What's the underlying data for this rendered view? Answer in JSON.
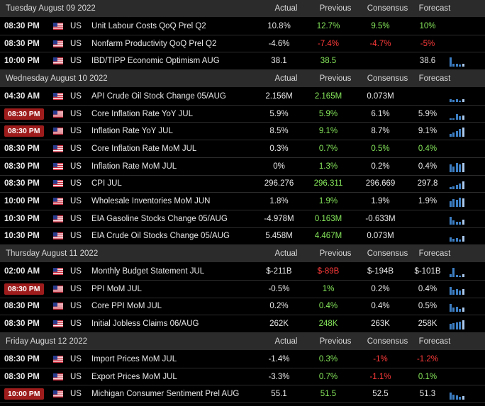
{
  "headers": {
    "actual": "Actual",
    "previous": "Previous",
    "consensus": "Consensus",
    "forecast": "Forecast"
  },
  "colors": {
    "accent_green": "#86e85b",
    "accent_red": "#ff3a3a",
    "badge_red": "#9e1c1c",
    "chart_blue": "#3d7fc4"
  },
  "days": [
    {
      "date": "Tuesday August 09 2022",
      "events": [
        {
          "time": "08:30 PM",
          "hl": false,
          "country": "US",
          "event": "Unit Labour Costs QoQ Prel Q2",
          "actual": "10.8%",
          "previous": "12.7%",
          "prev_color": "green",
          "consensus": "9.5%",
          "cons_color": "green",
          "forecast": "10%",
          "fore_color": "green",
          "chart": []
        },
        {
          "time": "08:30 PM",
          "hl": false,
          "country": "US",
          "event": "Nonfarm Productivity QoQ Prel Q2",
          "actual": "-4.6%",
          "previous": "-7.4%",
          "prev_color": "red",
          "consensus": "-4.7%",
          "cons_color": "red",
          "forecast": "-5%",
          "fore_color": "red",
          "chart": []
        },
        {
          "time": "10:00 PM",
          "hl": false,
          "country": "US",
          "event": "IBD/TIPP Economic Optimism AUG",
          "actual": "38.1",
          "previous": "38.5",
          "prev_color": "green",
          "consensus": "",
          "cons_color": "",
          "forecast": "38.6",
          "fore_color": "",
          "chart": [
            0.9,
            0.3,
            0.25,
            0.2,
            0.3
          ]
        }
      ]
    },
    {
      "date": "Wednesday August 10 2022",
      "events": [
        {
          "time": "04:30 AM",
          "hl": false,
          "country": "US",
          "event": "API Crude Oil Stock Change 05/AUG",
          "actual": "2.156M",
          "previous": "2.165M",
          "prev_color": "green",
          "consensus": "0.073M",
          "cons_color": "",
          "forecast": "",
          "fore_color": "",
          "chart": [
            0.3,
            0.2,
            0.3,
            0.15,
            0.25
          ]
        },
        {
          "time": "08:30 PM",
          "hl": true,
          "country": "US",
          "event": "Core Inflation Rate YoY JUL",
          "actual": "5.9%",
          "previous": "5.9%",
          "prev_color": "green",
          "consensus": "6.1%",
          "cons_color": "",
          "forecast": "5.9%",
          "fore_color": "",
          "chart": [
            0.1,
            0.15,
            0.6,
            0.35,
            0.4
          ]
        },
        {
          "time": "08:30 PM",
          "hl": true,
          "country": "US",
          "event": "Inflation Rate YoY JUL",
          "actual": "8.5%",
          "previous": "9.1%",
          "prev_color": "green",
          "consensus": "8.7%",
          "cons_color": "",
          "forecast": "9.1%",
          "fore_color": "",
          "chart": [
            0.3,
            0.4,
            0.55,
            0.75,
            0.9
          ]
        },
        {
          "time": "08:30 PM",
          "hl": false,
          "country": "US",
          "event": "Core Inflation Rate MoM JUL",
          "actual": "0.3%",
          "previous": "0.7%",
          "prev_color": "green",
          "consensus": "0.5%",
          "cons_color": "green",
          "forecast": "0.4%",
          "fore_color": "green",
          "chart": []
        },
        {
          "time": "08:30 PM",
          "hl": false,
          "country": "US",
          "event": "Inflation Rate MoM JUL",
          "actual": "0%",
          "previous": "1.3%",
          "prev_color": "green",
          "consensus": "0.2%",
          "cons_color": "",
          "forecast": "0.4%",
          "fore_color": "",
          "chart": [
            0.8,
            0.6,
            0.9,
            0.75,
            0.95
          ]
        },
        {
          "time": "08:30 PM",
          "hl": false,
          "country": "US",
          "event": "CPI JUL",
          "actual": "296.276",
          "previous": "296.311",
          "prev_color": "green",
          "consensus": "296.669",
          "cons_color": "",
          "forecast": "297.8",
          "fore_color": "",
          "chart": [
            0.2,
            0.3,
            0.45,
            0.6,
            0.8
          ]
        },
        {
          "time": "10:00 PM",
          "hl": false,
          "country": "US",
          "event": "Wholesale Inventories MoM JUN",
          "actual": "1.8%",
          "previous": "1.9%",
          "prev_color": "green",
          "consensus": "1.9%",
          "cons_color": "",
          "forecast": "1.9%",
          "fore_color": "",
          "chart": [
            0.6,
            0.8,
            0.7,
            0.9,
            0.85
          ]
        },
        {
          "time": "10:30 PM",
          "hl": false,
          "country": "US",
          "event": "EIA Gasoline Stocks Change 05/AUG",
          "actual": "-4.978M",
          "previous": "0.163M",
          "prev_color": "green",
          "consensus": "-0.633M",
          "cons_color": "",
          "forecast": "",
          "fore_color": "",
          "chart": [
            0.8,
            0.4,
            0.3,
            0.25,
            0.5
          ]
        },
        {
          "time": "10:30 PM",
          "hl": false,
          "country": "US",
          "event": "EIA Crude Oil Stocks Change 05/AUG",
          "actual": "5.458M",
          "previous": "4.467M",
          "prev_color": "green",
          "consensus": "0.073M",
          "cons_color": "",
          "forecast": "",
          "fore_color": "",
          "chart": [
            0.4,
            0.3,
            0.35,
            0.2,
            0.6
          ]
        }
      ]
    },
    {
      "date": "Thursday August 11 2022",
      "events": [
        {
          "time": "02:00 AM",
          "hl": false,
          "country": "US",
          "event": "Monthly Budget Statement JUL",
          "actual": "$-211B",
          "previous": "$-89B",
          "prev_color": "red",
          "consensus": "$-194B",
          "cons_color": "",
          "forecast": "$-101B",
          "fore_color": "",
          "chart": [
            0.3,
            0.9,
            0.2,
            0.15,
            0.3
          ]
        },
        {
          "time": "08:30 PM",
          "hl": true,
          "country": "US",
          "event": "PPI MoM JUL",
          "actual": "-0.5%",
          "previous": "1%",
          "prev_color": "green",
          "consensus": "0.2%",
          "cons_color": "",
          "forecast": "0.4%",
          "fore_color": "",
          "chart": [
            0.8,
            0.5,
            0.6,
            0.4,
            0.55
          ]
        },
        {
          "time": "08:30 PM",
          "hl": false,
          "country": "US",
          "event": "Core PPI MoM JUL",
          "actual": "0.2%",
          "previous": "0.4%",
          "prev_color": "green",
          "consensus": "0.4%",
          "cons_color": "",
          "forecast": "0.5%",
          "fore_color": "",
          "chart": [
            0.8,
            0.45,
            0.5,
            0.3,
            0.4
          ]
        },
        {
          "time": "08:30 PM",
          "hl": false,
          "country": "US",
          "event": "Initial Jobless Claims 06/AUG",
          "actual": "262K",
          "previous": "248K",
          "prev_color": "green",
          "consensus": "263K",
          "cons_color": "",
          "forecast": "258K",
          "fore_color": "",
          "chart": [
            0.55,
            0.65,
            0.7,
            0.8,
            0.9
          ]
        }
      ]
    },
    {
      "date": "Friday August 12 2022",
      "events": [
        {
          "time": "08:30 PM",
          "hl": false,
          "country": "US",
          "event": "Import Prices MoM JUL",
          "actual": "-1.4%",
          "previous": "0.3%",
          "prev_color": "green",
          "consensus": "-1%",
          "cons_color": "red",
          "forecast": "-1.2%",
          "fore_color": "red",
          "chart": []
        },
        {
          "time": "08:30 PM",
          "hl": false,
          "country": "US",
          "event": "Export Prices MoM JUL",
          "actual": "-3.3%",
          "previous": "0.7%",
          "prev_color": "green",
          "consensus": "-1.1%",
          "cons_color": "red",
          "forecast": "0.1%",
          "fore_color": "green",
          "chart": []
        },
        {
          "time": "10:00 PM",
          "hl": true,
          "country": "US",
          "event": "Michigan Consumer Sentiment Prel AUG",
          "actual": "55.1",
          "previous": "51.5",
          "prev_color": "green",
          "consensus": "52.5",
          "cons_color": "",
          "forecast": "51.3",
          "fore_color": "",
          "chart": [
            0.7,
            0.5,
            0.4,
            0.3,
            0.35
          ]
        }
      ]
    }
  ]
}
